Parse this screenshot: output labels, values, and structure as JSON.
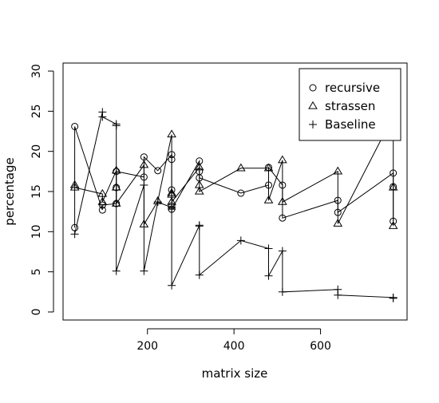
{
  "chart_data": {
    "type": "scatter",
    "title": "",
    "xlabel": "matrix size",
    "ylabel": "percentage",
    "xlim": [
      5,
      800
    ],
    "ylim": [
      -1,
      31
    ],
    "x_ticks": [
      200,
      400,
      600
    ],
    "y_ticks": [
      0,
      5,
      10,
      15,
      20,
      25,
      30
    ],
    "grid": false,
    "legend_position": "top-right",
    "series": [
      {
        "name": "recursive",
        "marker": "circle",
        "color": "#000000",
        "points": [
          [
            32,
            10.5
          ],
          [
            32,
            23.1
          ],
          [
            96,
            12.7
          ],
          [
            96,
            13.3
          ],
          [
            128,
            13.5
          ],
          [
            128,
            15.5
          ],
          [
            128,
            17.5
          ],
          [
            192,
            16.8
          ],
          [
            192,
            19.3
          ],
          [
            224,
            17.6
          ],
          [
            256,
            19.6
          ],
          [
            256,
            19.0
          ],
          [
            256,
            15.2
          ],
          [
            256,
            13.2
          ],
          [
            256,
            12.8
          ],
          [
            320,
            18.8
          ],
          [
            320,
            17.5
          ],
          [
            320,
            16.7
          ],
          [
            416,
            14.8
          ],
          [
            480,
            15.8
          ],
          [
            480,
            18.0
          ],
          [
            512,
            15.8
          ],
          [
            512,
            11.7
          ],
          [
            640,
            13.9
          ],
          [
            640,
            12.4
          ],
          [
            768,
            17.3
          ],
          [
            768,
            15.6
          ],
          [
            768,
            11.3
          ]
        ]
      },
      {
        "name": "strassen",
        "marker": "triangle",
        "color": "#000000",
        "points": [
          [
            32,
            15.8
          ],
          [
            32,
            15.5
          ],
          [
            96,
            14.7
          ],
          [
            96,
            13.7
          ],
          [
            128,
            17.6
          ],
          [
            128,
            15.5
          ],
          [
            128,
            13.5
          ],
          [
            192,
            18.3
          ],
          [
            192,
            10.9
          ],
          [
            224,
            13.8
          ],
          [
            256,
            22.1
          ],
          [
            256,
            14.8
          ],
          [
            256,
            14.6
          ],
          [
            256,
            13.7
          ],
          [
            320,
            18.0
          ],
          [
            320,
            15.8
          ],
          [
            320,
            15.0
          ],
          [
            416,
            17.9
          ],
          [
            480,
            17.9
          ],
          [
            480,
            13.9
          ],
          [
            512,
            18.9
          ],
          [
            512,
            13.7
          ],
          [
            640,
            17.5
          ],
          [
            640,
            11.0
          ],
          [
            768,
            24.4
          ],
          [
            768,
            15.5
          ],
          [
            768,
            10.7
          ]
        ]
      },
      {
        "name": "Baseline",
        "marker": "plus",
        "color": "#000000",
        "points": [
          [
            32,
            9.7
          ],
          [
            96,
            24.9
          ],
          [
            96,
            24.3
          ],
          [
            128,
            23.4
          ],
          [
            128,
            23.2
          ],
          [
            128,
            5.1
          ],
          [
            192,
            15.8
          ],
          [
            192,
            5.1
          ],
          [
            224,
            13.7
          ],
          [
            256,
            13.0
          ],
          [
            256,
            12.8
          ],
          [
            256,
            3.3
          ],
          [
            320,
            10.8
          ],
          [
            320,
            10.7
          ],
          [
            320,
            4.6
          ],
          [
            416,
            8.9
          ],
          [
            480,
            7.9
          ],
          [
            480,
            4.5
          ],
          [
            512,
            7.6
          ],
          [
            512,
            2.5
          ],
          [
            640,
            2.8
          ],
          [
            640,
            2.1
          ],
          [
            768,
            1.8
          ],
          [
            768,
            1.7
          ]
        ]
      }
    ]
  }
}
